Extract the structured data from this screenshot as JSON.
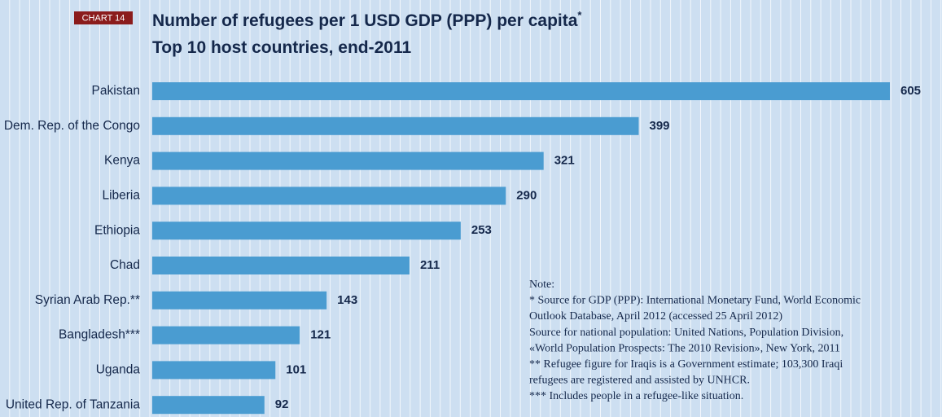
{
  "chart_data": {
    "type": "bar",
    "orientation": "horizontal",
    "label": "CHART 14",
    "title": "Number of refugees per 1 USD GDP (PPP) per capita",
    "title_mark": "*",
    "subtitle": "Top 10 host countries, end-2011",
    "categories": [
      "Pakistan",
      "Dem. Rep. of the Congo",
      "Kenya",
      "Liberia",
      "Ethiopia",
      "Chad",
      "Syrian Arab Rep.**",
      "Bangladesh***",
      "Uganda",
      "United Rep. of Tanzania"
    ],
    "values": [
      605,
      399,
      321,
      290,
      253,
      211,
      143,
      121,
      101,
      92
    ],
    "color": "#4a9cd1",
    "note": [
      "Note:",
      "* Source for GDP (PPP): International Monetary Fund, World Economic",
      "Outlook Database, April 2012 (accessed 25 April 2012)",
      "Source for national population: United Nations, Population Division,",
      "«World Population Prospects: The 2010 Revision», New York, 2011",
      "** Refugee figure for Iraqis is a Government estimate; 103,300 Iraqi",
      "refugees are registered and assisted by UNHCR.",
      "*** Includes people in a refugee-like situation."
    ]
  }
}
